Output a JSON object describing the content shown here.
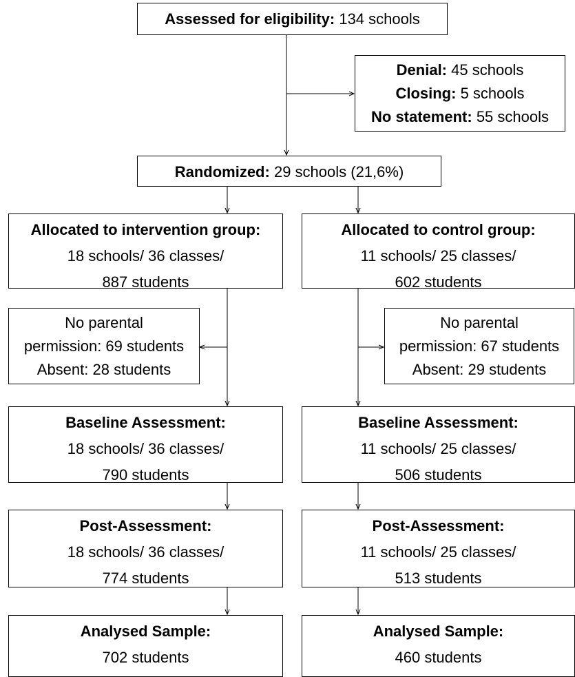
{
  "eligibility": {
    "label": "Assessed for eligibility:",
    "text": "134 schools"
  },
  "excluded": [
    {
      "label": "Denial:",
      "text": "45 schools"
    },
    {
      "label": "Closing:",
      "text": "5 schools"
    },
    {
      "label": "No statement:",
      "text": "55 schools"
    }
  ],
  "randomized": {
    "label": "Randomized:",
    "text": "29 schools (21,6%)"
  },
  "intervention": {
    "allocated": {
      "label": "Allocated to intervention group:",
      "lines": [
        "18 schools/ 36 classes/",
        "887 students"
      ]
    },
    "excluded": [
      "No parental",
      "permission: 69 students",
      "Absent: 28 students"
    ],
    "baseline": {
      "label": "Baseline Assessment:",
      "lines": [
        "18 schools/ 36 classes/",
        "790 students"
      ]
    },
    "post": {
      "label": "Post-Assessment:",
      "lines": [
        "18 schools/ 36 classes/",
        "774 students"
      ]
    },
    "analysed": {
      "label": "Analysed Sample:",
      "lines": [
        "702 students"
      ]
    }
  },
  "control": {
    "allocated": {
      "label": "Allocated to control group:",
      "lines": [
        "11 schools/ 25 classes/",
        "602 students"
      ]
    },
    "excluded": [
      "No parental",
      "permission: 67 students",
      "Absent: 29 students"
    ],
    "baseline": {
      "label": "Baseline Assessment:",
      "lines": [
        "11 schools/ 25 classes/",
        "506 students"
      ]
    },
    "post": {
      "label": "Post-Assessment:",
      "lines": [
        "11 schools/ 25 classes/",
        "513 students"
      ]
    },
    "analysed": {
      "label": "Analysed Sample:",
      "lines": [
        "460 students"
      ]
    }
  }
}
